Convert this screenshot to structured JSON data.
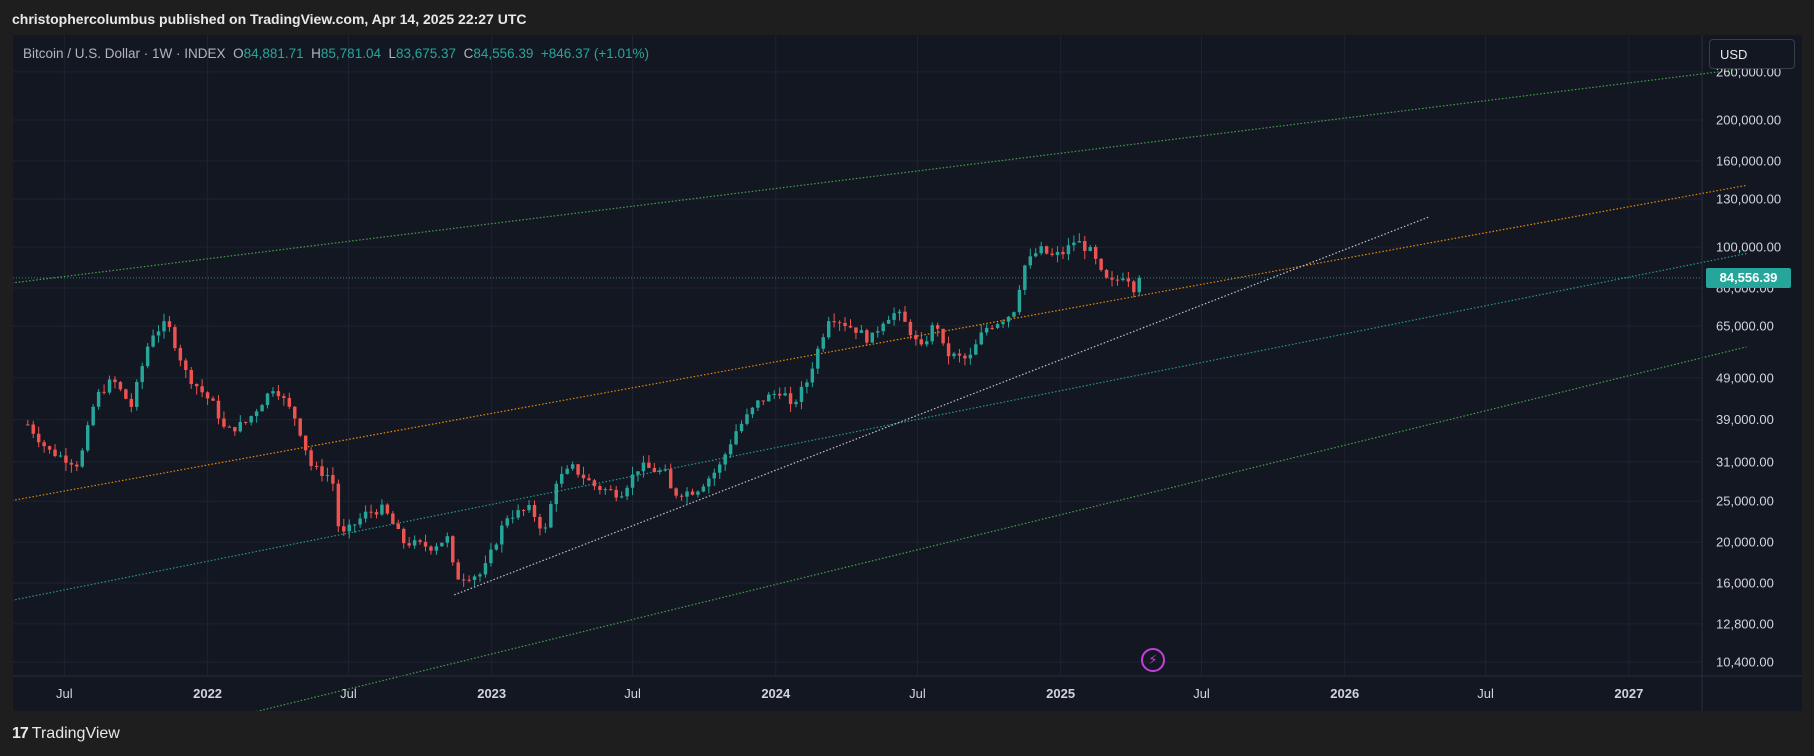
{
  "header": {
    "author": "christophercolumbus",
    "published_text": "published on TradingView.com, Apr 14, 2025 22:27 UTC"
  },
  "legend": {
    "symbol": "Bitcoin / U.S. Dollar · 1W · INDEX",
    "o_label": "O",
    "o_value": "84,881.71",
    "h_label": "H",
    "h_value": "85,781.04",
    "l_label": "L",
    "l_value": "83,675.37",
    "c_label": "C",
    "c_value": "84,556.39",
    "change": "+846.37 (+1.01%)"
  },
  "currency_button": "USD",
  "last_price_label": "84,556.39",
  "footer": {
    "logo_mark": "17",
    "logo_text": "TradingView"
  },
  "colors": {
    "background": "#131722",
    "up": "#26a69a",
    "down": "#ef5350",
    "channel_top": "#4caf50",
    "channel_orange": "#ff9800",
    "channel_teal": "#26a69a",
    "channel_bottom": "#4caf50",
    "trendline": "#d1d4dc",
    "accent_bolt": "#c340d8"
  },
  "chart_data": {
    "type": "candlestick",
    "title": "Bitcoin / U.S. Dollar · 1W · INDEX",
    "y_scale": "log",
    "grid": true,
    "y_ticks": [
      "10,400.00",
      "12,800.00",
      "16,000.00",
      "20,000.00",
      "25,000.00",
      "31,000.00",
      "39,000.00",
      "49,000.00",
      "65,000.00",
      "80,000.00",
      "100,000.00",
      "130,000.00",
      "160,000.00",
      "200,000.00",
      "260,000.00"
    ],
    "x_ticks": [
      {
        "label": "Jul",
        "date": "2021-07-01",
        "bold": false
      },
      {
        "label": "2022",
        "date": "2022-01-01",
        "bold": true
      },
      {
        "label": "Jul",
        "date": "2022-07-01",
        "bold": false
      },
      {
        "label": "2023",
        "date": "2023-01-01",
        "bold": true
      },
      {
        "label": "Jul",
        "date": "2023-07-01",
        "bold": false
      },
      {
        "label": "2024",
        "date": "2024-01-01",
        "bold": true
      },
      {
        "label": "Jul",
        "date": "2024-07-01",
        "bold": false
      },
      {
        "label": "2025",
        "date": "2025-01-01",
        "bold": true
      },
      {
        "label": "Jul",
        "date": "2025-07-01",
        "bold": false
      },
      {
        "label": "2026",
        "date": "2026-01-01",
        "bold": true
      },
      {
        "label": "Jul",
        "date": "2026-07-01",
        "bold": false
      },
      {
        "label": "2027",
        "date": "2027-01-01",
        "bold": true
      }
    ],
    "price_anchors": [
      [
        "2021-05-15",
        38000
      ],
      [
        "2021-06-10",
        33000
      ],
      [
        "2021-07-20",
        30500
      ],
      [
        "2021-08-10",
        44000
      ],
      [
        "2021-09-01",
        48500
      ],
      [
        "2021-09-25",
        42000
      ],
      [
        "2021-10-20",
        62000
      ],
      [
        "2021-11-10",
        66000
      ],
      [
        "2021-12-05",
        50000
      ],
      [
        "2022-01-10",
        42000
      ],
      [
        "2022-01-24",
        36500
      ],
      [
        "2022-02-20",
        38500
      ],
      [
        "2022-03-28",
        47000
      ],
      [
        "2022-04-25",
        39000
      ],
      [
        "2022-05-15",
        30000
      ],
      [
        "2022-06-10",
        28500
      ],
      [
        "2022-06-20",
        20500
      ],
      [
        "2022-07-25",
        23500
      ],
      [
        "2022-08-15",
        24000
      ],
      [
        "2022-09-10",
        20000
      ],
      [
        "2022-10-15",
        19500
      ],
      [
        "2022-11-07",
        20500
      ],
      [
        "2022-11-14",
        16500
      ],
      [
        "2022-12-20",
        16800
      ],
      [
        "2023-01-20",
        23000
      ],
      [
        "2023-02-20",
        24000
      ],
      [
        "2023-03-10",
        21000
      ],
      [
        "2023-03-25",
        28000
      ],
      [
        "2023-04-15",
        30000
      ],
      [
        "2023-05-15",
        27000
      ],
      [
        "2023-06-15",
        26000
      ],
      [
        "2023-07-10",
        30300
      ],
      [
        "2023-08-15",
        29000
      ],
      [
        "2023-08-20",
        26000
      ],
      [
        "2023-09-20",
        26500
      ],
      [
        "2023-10-20",
        30000
      ],
      [
        "2023-11-10",
        36500
      ],
      [
        "2023-12-10",
        43000
      ],
      [
        "2024-01-10",
        46000
      ],
      [
        "2024-01-20",
        41500
      ],
      [
        "2024-02-10",
        48000
      ],
      [
        "2024-03-10",
        69000
      ],
      [
        "2024-04-15",
        63500
      ],
      [
        "2024-05-01",
        60000
      ],
      [
        "2024-05-20",
        68000
      ],
      [
        "2024-06-05",
        70000
      ],
      [
        "2024-06-20",
        64000
      ],
      [
        "2024-07-05",
        57000
      ],
      [
        "2024-07-25",
        67000
      ],
      [
        "2024-08-05",
        56000
      ],
      [
        "2024-09-05",
        54000
      ],
      [
        "2024-09-25",
        64000
      ],
      [
        "2024-10-15",
        67000
      ],
      [
        "2024-11-01",
        70000
      ],
      [
        "2024-11-15",
        90000
      ],
      [
        "2024-12-05",
        99000
      ],
      [
        "2024-12-20",
        95000
      ],
      [
        "2025-01-05",
        97000
      ],
      [
        "2025-01-20",
        104000
      ],
      [
        "2025-02-10",
        97000
      ],
      [
        "2025-02-25",
        84000
      ],
      [
        "2025-03-10",
        82000
      ],
      [
        "2025-03-25",
        87000
      ],
      [
        "2025-04-07",
        79000
      ],
      [
        "2025-04-14",
        84556
      ]
    ],
    "lines": [
      {
        "name": "channel-top",
        "style": "dotted",
        "from": [
          "2021-04-20",
          82000
        ],
        "to": [
          "2027-06-01",
          265000
        ]
      },
      {
        "name": "channel-orange",
        "style": "dotted",
        "from": [
          "2021-04-20",
          25000
        ],
        "to": [
          "2027-06-01",
          140000
        ]
      },
      {
        "name": "channel-teal",
        "style": "dotted",
        "from": [
          "2021-04-20",
          14500
        ],
        "to": [
          "2027-06-01",
          96500
        ]
      },
      {
        "name": "channel-bottom",
        "style": "dotted",
        "from": [
          "2021-04-20",
          5700
        ],
        "to": [
          "2027-06-01",
          58000
        ]
      },
      {
        "name": "trendline-white",
        "style": "dotted",
        "from": [
          "2022-11-14",
          15000
        ],
        "to": [
          "2026-04-20",
          118000
        ]
      }
    ],
    "last_price": 84556.39
  }
}
